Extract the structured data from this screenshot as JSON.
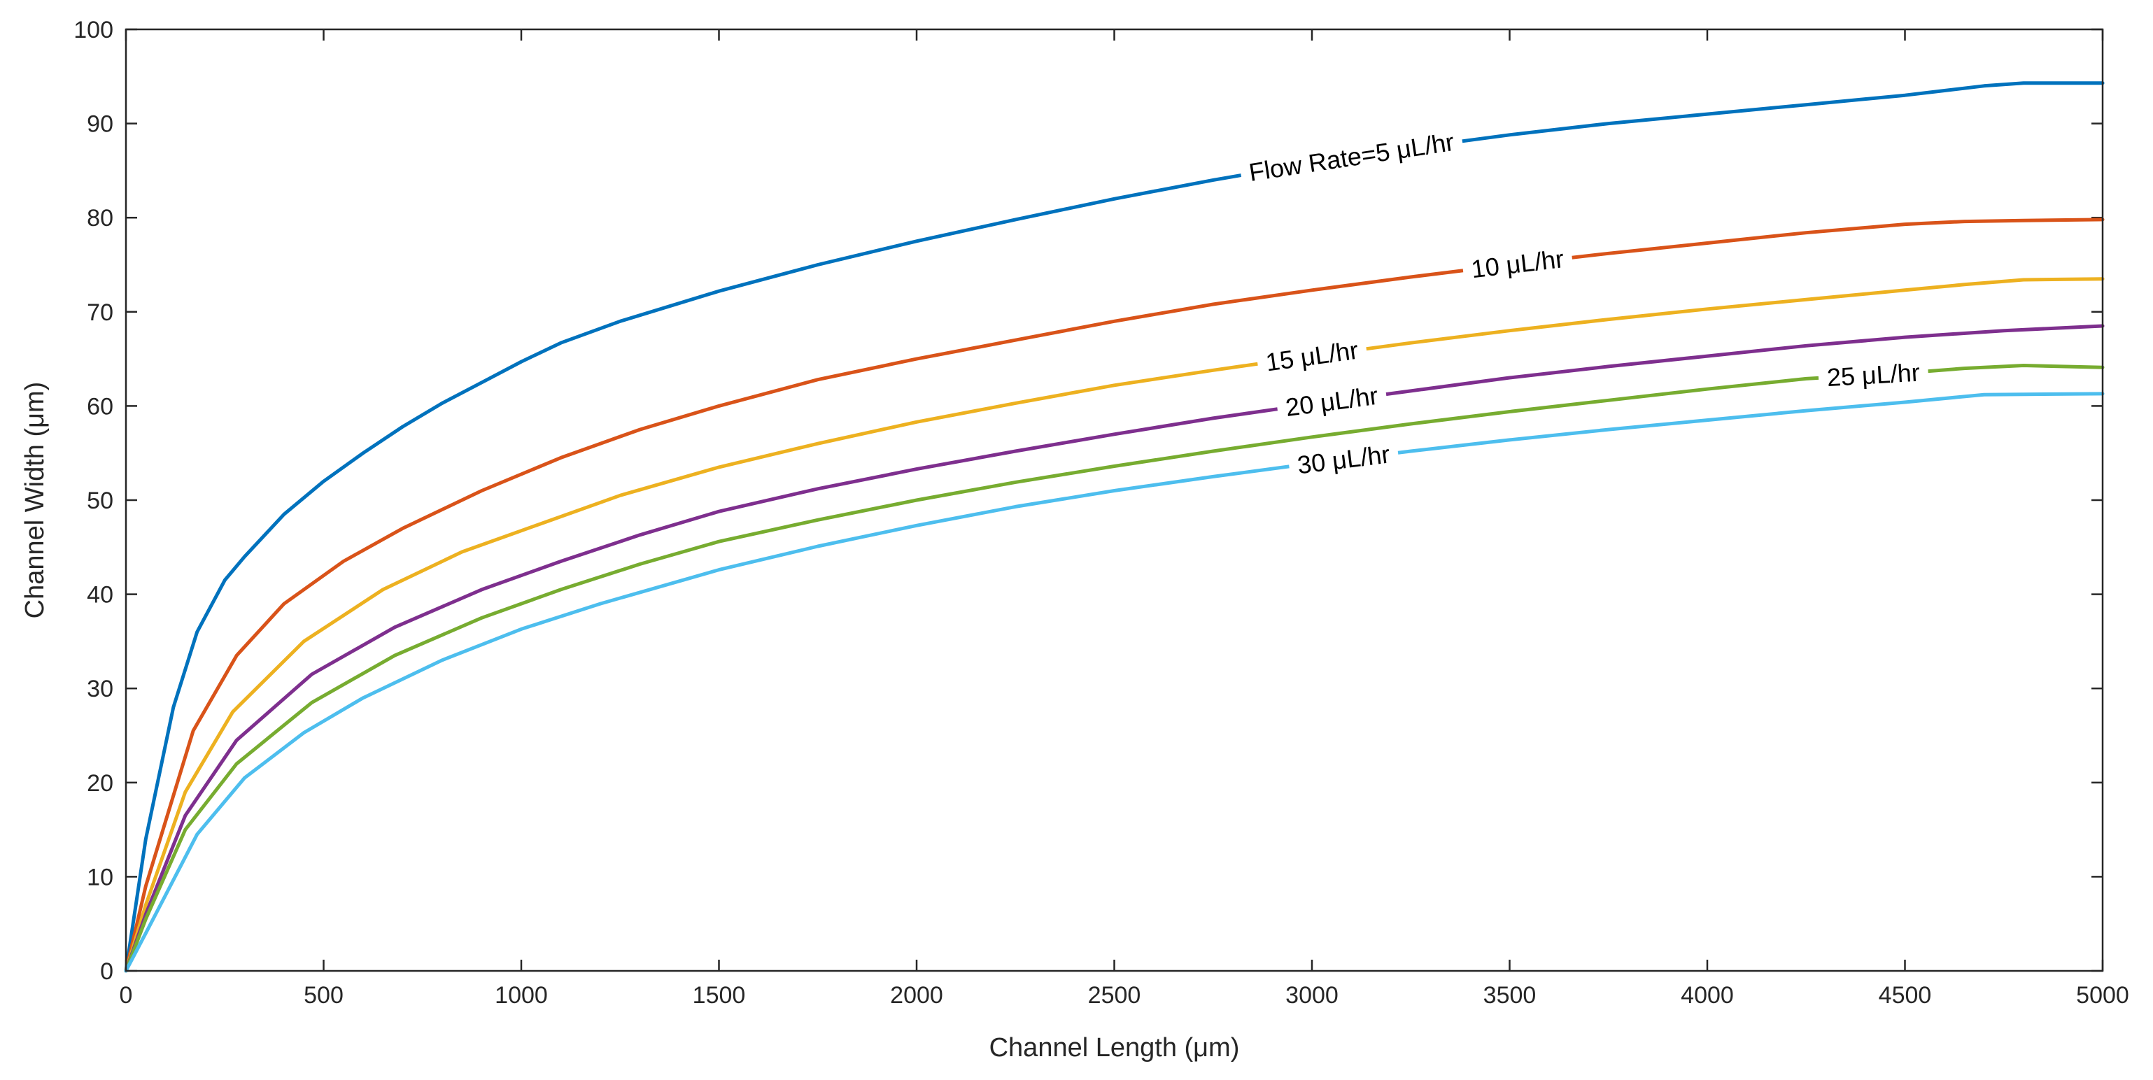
{
  "chart_data": {
    "type": "line",
    "title": "",
    "xlabel": "Channel Length (μm)",
    "ylabel": "Channel Width (μm)",
    "xlim": [
      0,
      5000
    ],
    "ylim": [
      0,
      100
    ],
    "xticks": [
      0,
      500,
      1000,
      1500,
      2000,
      2500,
      3000,
      3500,
      4000,
      4500,
      5000
    ],
    "yticks": [
      0,
      10,
      20,
      30,
      40,
      50,
      60,
      70,
      80,
      90,
      100
    ],
    "grid": false,
    "box": true,
    "series": [
      {
        "name": "Flow Rate=5 μL/hr",
        "color": "#0072BD",
        "label": "Flow Rate=5 μL/hr",
        "label_at": 3100,
        "x": [
          0,
          50,
          120,
          180,
          250,
          300,
          400,
          500,
          600,
          700,
          800,
          900,
          1000,
          1100,
          1250,
          1500,
          1750,
          2000,
          2250,
          2500,
          2750,
          3000,
          3250,
          3500,
          3750,
          4000,
          4250,
          4500,
          4600,
          4700,
          4800,
          5000
        ],
        "y": [
          0,
          14,
          28,
          36,
          41.5,
          44,
          48.5,
          52,
          55,
          57.8,
          60.3,
          62.5,
          64.7,
          66.7,
          69,
          72.2,
          75,
          77.5,
          79.8,
          82,
          84,
          85.8,
          87.4,
          88.8,
          90,
          91,
          92,
          93,
          93.5,
          94,
          94.3,
          94.3
        ]
      },
      {
        "name": "10 μL/hr",
        "color": "#D95319",
        "label": "10 μL/hr",
        "label_at": 3520,
        "x": [
          0,
          50,
          170,
          280,
          400,
          550,
          700,
          900,
          1100,
          1300,
          1500,
          1750,
          2000,
          2250,
          2500,
          2750,
          3000,
          3250,
          3500,
          3750,
          4000,
          4250,
          4500,
          4650,
          4800,
          5000
        ],
        "y": [
          0,
          9,
          25.5,
          33.5,
          39,
          43.5,
          47,
          51,
          54.5,
          57.5,
          60,
          62.8,
          65,
          67,
          69,
          70.8,
          72.3,
          73.7,
          75,
          76.2,
          77.3,
          78.4,
          79.3,
          79.6,
          79.7,
          79.8
        ]
      },
      {
        "name": "15 μL/hr",
        "color": "#EDB120",
        "label": "15 μL/hr",
        "label_at": 3000,
        "x": [
          0,
          50,
          150,
          270,
          450,
          650,
          850,
          1050,
          1250,
          1500,
          1750,
          2000,
          2250,
          2500,
          2750,
          3000,
          3250,
          3500,
          3750,
          4000,
          4250,
          4500,
          4650,
          4800,
          5000
        ],
        "y": [
          0,
          7,
          19,
          27.5,
          35,
          40.5,
          44.5,
          47.5,
          50.5,
          53.5,
          56,
          58.3,
          60.3,
          62.2,
          63.8,
          65.3,
          66.7,
          68,
          69.2,
          70.3,
          71.3,
          72.3,
          72.9,
          73.4,
          73.5
        ]
      },
      {
        "name": "20 μL/hr",
        "color": "#7E2F8E",
        "label": "20 μL/hr",
        "label_at": 3050,
        "x": [
          0,
          50,
          150,
          280,
          470,
          680,
          900,
          1100,
          1300,
          1500,
          1750,
          2000,
          2250,
          2500,
          2750,
          3000,
          3250,
          3500,
          3750,
          4000,
          4250,
          4500,
          4750,
          5000
        ],
        "y": [
          0,
          6,
          16.5,
          24.5,
          31.5,
          36.5,
          40.5,
          43.5,
          46.3,
          48.8,
          51.2,
          53.3,
          55.2,
          57,
          58.7,
          60.2,
          61.6,
          63,
          64.2,
          65.3,
          66.4,
          67.3,
          68,
          68.5
        ]
      },
      {
        "name": "25 μL/hr",
        "color": "#77AC30",
        "label": "25 μL/hr",
        "label_at": 4420,
        "x": [
          0,
          50,
          150,
          280,
          470,
          680,
          900,
          1100,
          1300,
          1500,
          1750,
          2000,
          2250,
          2500,
          2750,
          3000,
          3250,
          3500,
          3750,
          4000,
          4250,
          4500,
          4650,
          4800,
          5000
        ],
        "y": [
          0,
          5.5,
          15,
          22,
          28.5,
          33.5,
          37.5,
          40.5,
          43.2,
          45.6,
          47.9,
          50,
          51.9,
          53.6,
          55.2,
          56.7,
          58.1,
          59.4,
          60.6,
          61.8,
          62.9,
          63.5,
          64,
          64.3,
          64.1
        ]
      },
      {
        "name": "30 μL/hr",
        "color": "#4DBEEE",
        "label": "30 μL/hr",
        "label_at": 3080,
        "x": [
          0,
          50,
          180,
          300,
          450,
          600,
          800,
          1000,
          1200,
          1500,
          1750,
          2000,
          2250,
          2500,
          2750,
          3000,
          3250,
          3500,
          3750,
          4000,
          4250,
          4500,
          4700,
          5000
        ],
        "y": [
          0,
          4,
          14.5,
          20.5,
          25.3,
          29,
          33,
          36.3,
          39,
          42.6,
          45.1,
          47.3,
          49.3,
          51,
          52.5,
          53.9,
          55.2,
          56.4,
          57.5,
          58.5,
          59.5,
          60.4,
          61.2,
          61.3
        ]
      }
    ]
  }
}
